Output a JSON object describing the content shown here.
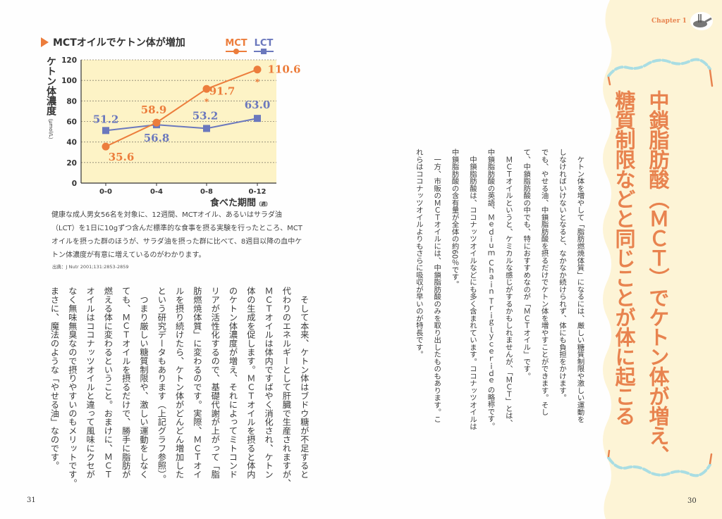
{
  "left_page": {
    "page_number": "31",
    "chart": {
      "title": "MCTオイルでケトン体が増加",
      "y_label": "ケトン体濃度",
      "y_unit": "（μmol/L）",
      "x_label": "食べた期間",
      "x_unit": "（週）",
      "caption": "健康な成人男女56名を対象に、12週間、MCTオイル、あるいはサラダ油（LCT）を1日に10gずつ含んだ標準的な食事を摂る実験を行ったところ、MCTオイルを摂った群のほうが、サラダ油を摂った群に比べて、8週目以降の血中ケトン体濃度が有意に増えているのがわかります。",
      "source": "出典：J Nutr 2001;131:2853-2859",
      "significance_mark": "＊"
    },
    "body_columns": [
      "　そして本来、ケトン体はブドウ糖が不足すると",
      "代わりのエネルギーとして肝臓で生産されますが、",
      "ＭＣＴオイルは体内ですばやく消化され、ケトン",
      "体の生成を促します。ＭＣＴオイルを摂ると体内",
      "のケトン体濃度が増え、それによってミトコンド",
      "リアが活性化するので、基礎代謝が上がって「脂",
      "肪燃焼体質」に変わるのです。実際、ＭＣＴオイ",
      "ルを摂り続けたら、ケトン体がどんどん増加した",
      "という研究データもあります（上記グラフ参照）。",
      "　つまり厳しい糖質制限や、激しい運動をしなく",
      "ても、ＭＣＴオイルを摂るだけで、勝手に脂肪が",
      "燃える体に変わるということ。おまけに、ＭＣＴ",
      "オイルはココナッツオイルと違って風味にクセが",
      "なく無味無臭なので摂りやすいのもメリットです。",
      "まさに、魔法のような「やせる油」なのです。"
    ]
  },
  "right_page": {
    "page_number": "30",
    "chapter_label": "Chapter 1",
    "chapter_icon": "frying-pan-icon",
    "title_lines": [
      "中鎖脂肪酸（ＭＣＴ）でケトン体が増え、",
      "糖質制限などと同じことが体に起こる"
    ],
    "body_columns": [
      "　ケトン体を増やして「脂肪燃焼体質」になるには、厳しい糖質制限や激しい運動を",
      "しなければいけないとなると、なかなか続けられず、体にも負担をかけます。",
      "でも、やせる油、中鎖脂肪酸を摂るだけでケトン体を増やすことができます。そし",
      "て、中鎖脂肪酸の中でも、特におすすめなのが「ＭＣＴオイル」です。",
      "　ＭＣＴオイルというと、ケミカルな感じがするかもしれませんが、「ＭＣＴ」とは、",
      "中鎖脂肪酸の英語、Ｍｅｄｉｕｍ Ｃｈａｉｎ Ｔｒｉｇｌｙｃｅｒｉｄｅ の略称です。",
      "　中鎖脂肪酸は、ココナッツオイルなどにも多く含まれています。ココナッツオイルは",
      "中鎖脂肪酸の含有量が全体の約60％です。",
      "　一方、市販のＭＣＴオイルには、中鎖脂肪酸のみを取り出したものもあります。こ",
      "れらはココナッツオイルよりもさらに吸収が早いのが特長です。"
    ]
  },
  "colors": {
    "mct": "#ec7d3c",
    "lct": "#6b78bd",
    "plot_bg": "#fdf3c6",
    "sidebar_bg": "#fdf4d6",
    "title": "#e8834f",
    "wave": "#a9dde3"
  },
  "chart_data": {
    "type": "line",
    "title": "MCTオイルでケトン体が増加",
    "xlabel": "食べた期間（週）",
    "ylabel": "ケトン体濃度（μmol/L）",
    "categories": [
      "0-0",
      "0-4",
      "0-8",
      "0-12"
    ],
    "ylim": [
      0,
      120
    ],
    "yticks": [
      0,
      20,
      40,
      60,
      80,
      100,
      120
    ],
    "grid": true,
    "legend": "top-right",
    "series": [
      {
        "name": "MCT",
        "values": [
          35.6,
          58.9,
          91.7,
          110.6
        ],
        "marker": "circle",
        "labels": [
          "35.6",
          "58.9",
          "91.7",
          "110.6"
        ],
        "significant": [
          false,
          false,
          true,
          true
        ]
      },
      {
        "name": "LCT",
        "values": [
          51.2,
          56.8,
          53.2,
          63.0
        ],
        "marker": "square",
        "labels": [
          "51.2",
          "56.8",
          "53.2",
          "63.0"
        ]
      }
    ]
  }
}
